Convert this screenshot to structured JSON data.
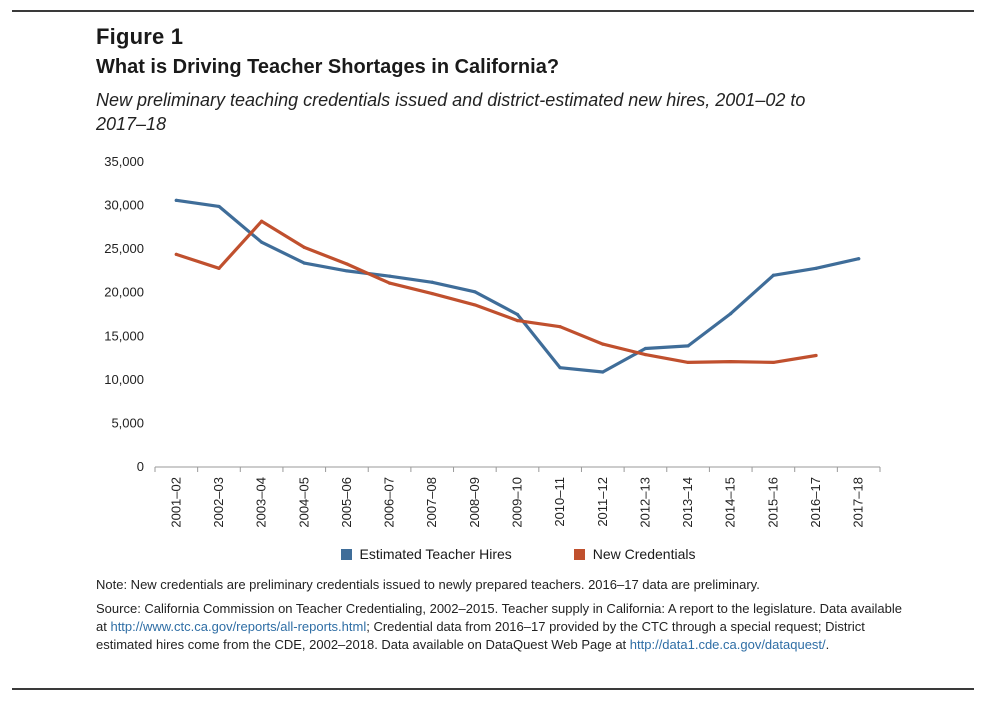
{
  "figure_label": "Figure 1",
  "title": "What is Driving Teacher Shortages in California?",
  "subtitle": "New preliminary teaching credentials issued and district-estimated new hires, 2001–02 to 2017–18",
  "note": "Note: New credentials are preliminary credentials issued to newly prepared teachers. 2016–17 data are preliminary.",
  "source": {
    "part1": "Source: California Commission on Teacher Credentialing, 2002–2015. Teacher supply in California: A report to the legislature. Data available at ",
    "link1": "http://www.ctc.ca.gov/reports/all-reports.html",
    "part2": "; Credential data from 2016–17 provided by the CTC through a special request; District estimated hires come from the CDE, 2002–2018. Data available on DataQuest Web Page at ",
    "link2": "http://data1.cde.ca.gov/dataquest/",
    "part3": "."
  },
  "chart_data": {
    "type": "line",
    "categories": [
      "2001–02",
      "2002–03",
      "2003–04",
      "2004–05",
      "2005–06",
      "2006–07",
      "2007–08",
      "2008–09",
      "2009–10",
      "2010–11",
      "2011–12",
      "2012–13",
      "2013–14",
      "2014–15",
      "2015–16",
      "2016–17",
      "2017–18"
    ],
    "series": [
      {
        "name": "Estimated Teacher Hires",
        "color": "#3f6d99",
        "values": [
          30600,
          29900,
          25800,
          23400,
          22500,
          21900,
          21200,
          20100,
          17500,
          11400,
          10900,
          13600,
          13900,
          17600,
          22000,
          22800,
          23900
        ]
      },
      {
        "name": "New Credentials",
        "color": "#c0502e",
        "values": [
          24400,
          22800,
          28200,
          25200,
          23300,
          21100,
          19900,
          18600,
          16800,
          16100,
          14100,
          12900,
          12000,
          12100,
          12000,
          12800,
          null
        ]
      }
    ],
    "y_ticks": [
      "35,000",
      "30,000",
      "25,000",
      "20,000",
      "15,000",
      "10,000",
      "5,000",
      "0"
    ],
    "ylim": [
      0,
      35000
    ],
    "grid": false,
    "legend_position": "bottom"
  }
}
